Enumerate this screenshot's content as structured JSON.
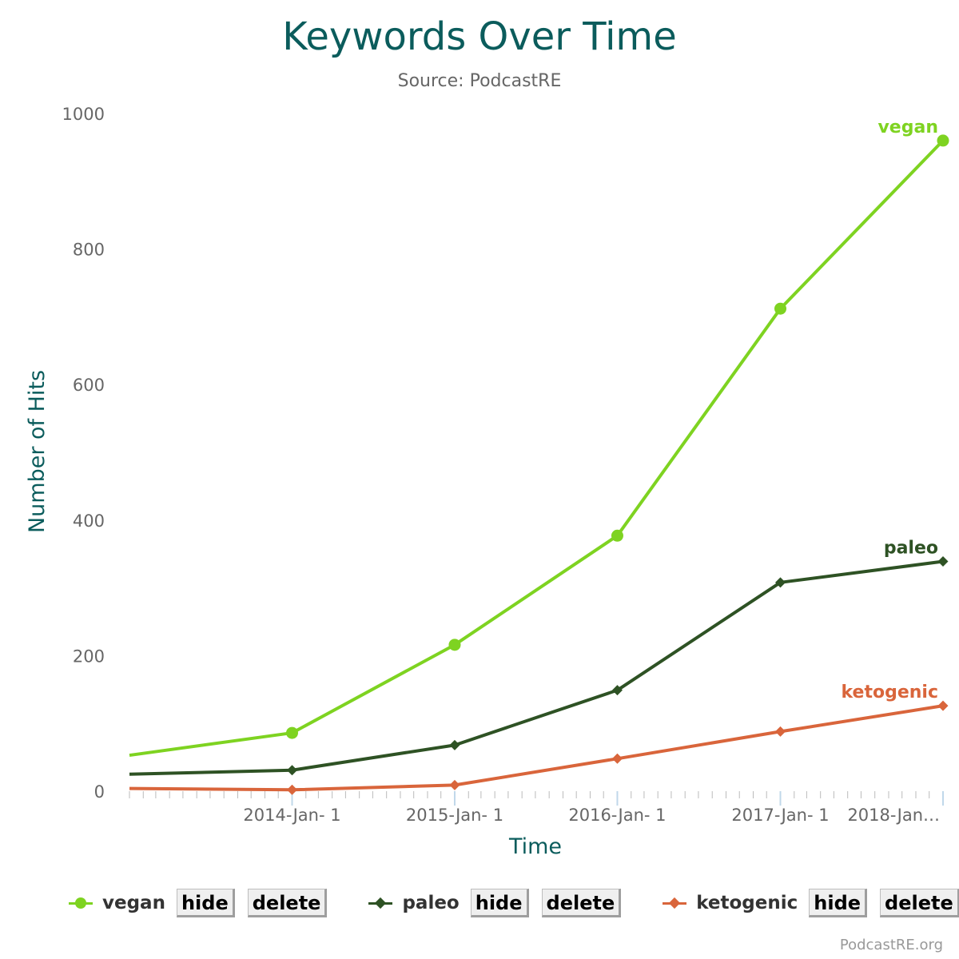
{
  "chart_data": {
    "type": "line",
    "title": "Keywords Over Time",
    "subtitle": "Source: PodcastRE",
    "xlabel": "Time",
    "ylabel": "Number of Hits",
    "x_tick_labels": [
      "2014-Jan- 1",
      "2015-Jan- 1",
      "2016-Jan- 1",
      "2017-Jan- 1",
      "2018-Jan…"
    ],
    "x_tick_dates": [
      "2014-01-01",
      "2015-01-01",
      "2016-01-01",
      "2017-01-01",
      "2018-01-01"
    ],
    "x_range": [
      "2013-01-01",
      "2018-01-01"
    ],
    "y_ticks": [
      "0",
      "200",
      "400",
      "600",
      "800",
      "1000"
    ],
    "ylim": [
      0,
      1000
    ],
    "legend_position": "bottom",
    "series": [
      {
        "name": "vegan",
        "color": "#7ed321",
        "marker": "circle",
        "x": [
          "2013-01-01",
          "2014-01-01",
          "2015-01-01",
          "2016-01-01",
          "2017-01-01",
          "2018-01-01"
        ],
        "values": [
          53,
          86,
          216,
          377,
          712,
          960
        ]
      },
      {
        "name": "paleo",
        "color": "#2e5224",
        "marker": "diamond",
        "x": [
          "2013-01-01",
          "2014-01-01",
          "2015-01-01",
          "2016-01-01",
          "2017-01-01",
          "2018-01-01"
        ],
        "values": [
          25,
          31,
          68,
          149,
          308,
          339
        ]
      },
      {
        "name": "ketogenic",
        "color": "#d9653b",
        "marker": "diamond",
        "x": [
          "2013-01-01",
          "2014-01-01",
          "2015-01-01",
          "2016-01-01",
          "2017-01-01",
          "2018-01-01"
        ],
        "values": [
          4,
          2,
          9,
          48,
          88,
          126
        ]
      }
    ]
  },
  "legend": {
    "items": [
      {
        "label": "vegan",
        "hide": "hide",
        "delete": "delete"
      },
      {
        "label": "paleo",
        "hide": "hide",
        "delete": "delete"
      },
      {
        "label": "ketogenic",
        "hide": "hide",
        "delete": "delete"
      }
    ]
  },
  "credit": "PodcastRE.org",
  "colors": {
    "title": "#0b5c5c",
    "axis_title": "#0b5c5c",
    "tick_label": "#666666",
    "axis_line": "#c0d0e0"
  }
}
